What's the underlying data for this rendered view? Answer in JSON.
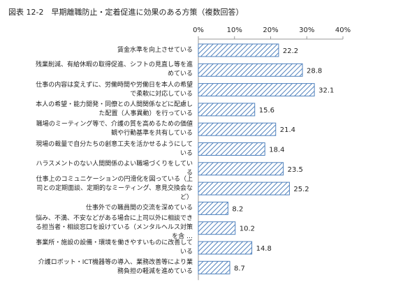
{
  "chart_data": {
    "type": "bar",
    "orientation": "horizontal",
    "title": "図表 12-2　早期離職防止・定着促進に効果のある方策（複数回答）",
    "categories": [
      "賃金水準を向上させている",
      "残業削減、有給休暇の取得促進、シフトの見直し等を進めている",
      "仕事の内容は変えずに、労働時間や労働日を本人の希望で柔軟に対応している",
      "本人の希望・能力開発・同僚との人間関係などに配慮した配置（人事異動）を行っている",
      "職場のミーティング等で、介護の質を高めるための価値観や行動基準を共有している",
      "現場の裁量で自分たちの創意工夫を活かせるようにしている",
      "ハラスメントのない人間関係のよい職場づくりをしている",
      "仕事上のコミュニケーションの円滑化を図っている（上司との定期面談、定期的なミーティング、意見交換会など）",
      "仕事外での職員間の交流を深めている",
      "悩み、不満、不安などがある場合に上司以外に相談できる担当者・相談窓口を設けている（メンタルヘルス対策を含 …",
      "事業所・施設の設備・環境を働きやすいものに改善している",
      "介護ロボット・ICT機器等の導入、業務改善等により業務負担の軽減を進めている"
    ],
    "values": [
      22.2,
      28.8,
      32.1,
      15.6,
      21.4,
      18.4,
      23.5,
      25.2,
      8.2,
      10.2,
      14.8,
      8.7
    ],
    "color": "#4f81bd",
    "xlim": [
      0,
      40
    ],
    "xticks": [
      {
        "value": 0,
        "label": "0%"
      },
      {
        "value": 10,
        "label": "10%"
      },
      {
        "value": 20,
        "label": "20%"
      },
      {
        "value": 30,
        "label": "30%"
      },
      {
        "value": 40,
        "label": "40%"
      }
    ]
  }
}
